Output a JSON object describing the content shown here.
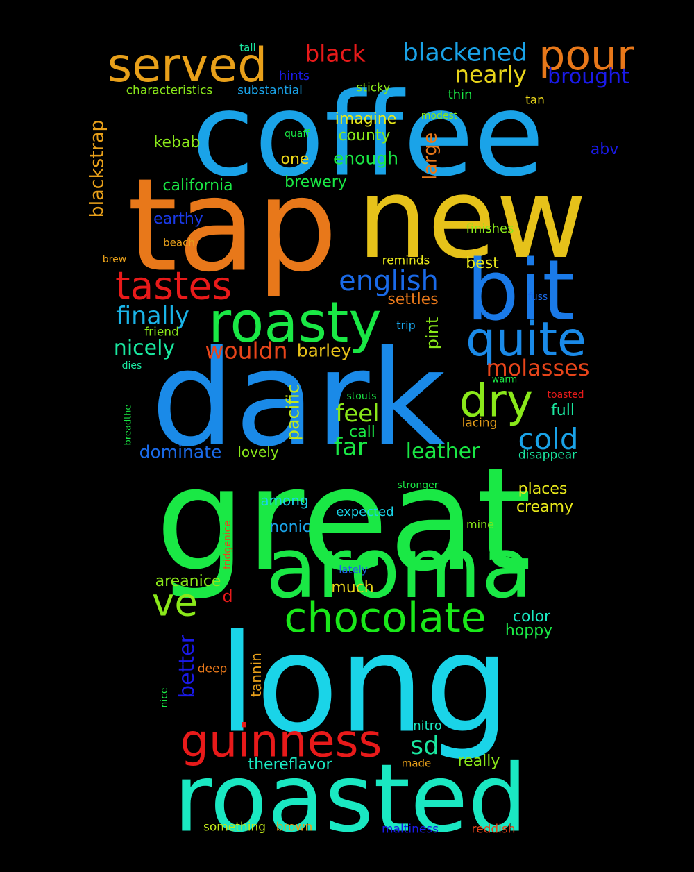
{
  "words": [
    {
      "text": "coffee",
      "color": "#1aa3e8"
    },
    {
      "text": "tap",
      "color": "#e8781a"
    },
    {
      "text": "new",
      "color": "#e6c21a"
    },
    {
      "text": "dark",
      "color": "#1a8ae8"
    },
    {
      "text": "great",
      "color": "#1ae845"
    },
    {
      "text": "long",
      "color": "#1ad4e8"
    },
    {
      "text": "aroma",
      "color": "#1ae845"
    },
    {
      "text": "roasted",
      "color": "#1ae8c2"
    },
    {
      "text": "bit",
      "color": "#1a7ae8"
    },
    {
      "text": "roasty",
      "color": "#1ae845"
    },
    {
      "text": "quite",
      "color": "#1a8ae8"
    },
    {
      "text": "served",
      "color": "#e8a01a"
    },
    {
      "text": "pour",
      "color": "#e8781a"
    },
    {
      "text": "guinness",
      "color": "#e81a1a"
    },
    {
      "text": "chocolate",
      "color": "#1ae81a"
    },
    {
      "text": "tastes",
      "color": "#e81a1a"
    },
    {
      "text": "dry",
      "color": "#8ae81a"
    },
    {
      "text": "ve",
      "color": "#8ae81a"
    },
    {
      "text": "english",
      "color": "#1a6ae8"
    },
    {
      "text": "cold",
      "color": "#1aa3e8"
    },
    {
      "text": "blackened",
      "color": "#1aa3e8"
    },
    {
      "text": "black",
      "color": "#e81a1a"
    },
    {
      "text": "nearly",
      "color": "#e8d41a"
    },
    {
      "text": "brought",
      "color": "#1a1ae8"
    },
    {
      "text": "finally",
      "color": "#1ab4e8"
    },
    {
      "text": "nicely",
      "color": "#1ae8a0"
    },
    {
      "text": "wouldn",
      "color": "#e8451a"
    },
    {
      "text": "molasses",
      "color": "#e8451a"
    },
    {
      "text": "feel",
      "color": "#8ae81a"
    },
    {
      "text": "far",
      "color": "#1ae845"
    },
    {
      "text": "sd",
      "color": "#1ae8a0"
    },
    {
      "text": "blackstrap",
      "color": "#e8a01a"
    },
    {
      "text": "large",
      "color": "#e8781a"
    },
    {
      "text": "better",
      "color": "#1a1ae8"
    },
    {
      "text": "leather",
      "color": "#1ae845"
    },
    {
      "text": "dominate",
      "color": "#1a6ae8"
    },
    {
      "text": "barley",
      "color": "#e8c21a"
    },
    {
      "text": "pint",
      "color": "#8ae81a"
    },
    {
      "text": "pacific",
      "color": "#c2e81a"
    },
    {
      "text": "county",
      "color": "#8ae81a"
    },
    {
      "text": "enough",
      "color": "#1ae845"
    },
    {
      "text": "imagine",
      "color": "#e8e81a"
    },
    {
      "text": "kebab",
      "color": "#8ae81a"
    },
    {
      "text": "california",
      "color": "#1ae845"
    },
    {
      "text": "earthy",
      "color": "#1a3ae8"
    },
    {
      "text": "one",
      "color": "#e8d41a"
    },
    {
      "text": "brewery",
      "color": "#1ae845"
    },
    {
      "text": "best",
      "color": "#e8e81a"
    },
    {
      "text": "settles",
      "color": "#e8781a"
    },
    {
      "text": "abv",
      "color": "#1a1ae8"
    },
    {
      "text": "full",
      "color": "#1ae8a0"
    },
    {
      "text": "call",
      "color": "#1ae845"
    },
    {
      "text": "lovely",
      "color": "#8ae81a"
    },
    {
      "text": "among",
      "color": "#1ad4e8"
    },
    {
      "text": "places",
      "color": "#e8e81a"
    },
    {
      "text": "creamy",
      "color": "#e8e81a"
    },
    {
      "text": "nonic",
      "color": "#1aa3e8"
    },
    {
      "text": "expected",
      "color": "#1ad4e8"
    },
    {
      "text": "areanice",
      "color": "#8ae81a"
    },
    {
      "text": "much",
      "color": "#e8d41a"
    },
    {
      "text": "color",
      "color": "#1ae8c2"
    },
    {
      "text": "hoppy",
      "color": "#1ae845"
    },
    {
      "text": "d",
      "color": "#e81a1a"
    },
    {
      "text": "thereflavor",
      "color": "#1ae8c2"
    },
    {
      "text": "really",
      "color": "#8ae81a"
    },
    {
      "text": "nitro",
      "color": "#1ae8c2"
    },
    {
      "text": "tannin",
      "color": "#e8a01a"
    },
    {
      "text": "deep",
      "color": "#e8781a"
    },
    {
      "text": "characteristics",
      "color": "#8ae81a"
    },
    {
      "text": "substantial",
      "color": "#1aa3e8"
    },
    {
      "text": "sticky",
      "color": "#8ae81a"
    },
    {
      "text": "hints",
      "color": "#1a1ae8"
    },
    {
      "text": "tall",
      "color": "#1ae8a0"
    },
    {
      "text": "thin",
      "color": "#1ae845"
    },
    {
      "text": "tan",
      "color": "#e8d41a"
    },
    {
      "text": "modest",
      "color": "#8ae81a"
    },
    {
      "text": "quaff",
      "color": "#1ae845"
    },
    {
      "text": "finishes",
      "color": "#8ae81a"
    },
    {
      "text": "beach",
      "color": "#e8a01a"
    },
    {
      "text": "brew",
      "color": "#e8a01a"
    },
    {
      "text": "reminds",
      "color": "#e8e81a"
    },
    {
      "text": "fuss",
      "color": "#1a6ae8"
    },
    {
      "text": "friend",
      "color": "#8ae81a"
    },
    {
      "text": "trip",
      "color": "#1aa3e8"
    },
    {
      "text": "dies",
      "color": "#1ae8a0"
    },
    {
      "text": "warm",
      "color": "#1ae845"
    },
    {
      "text": "toasted",
      "color": "#e81a1a"
    },
    {
      "text": "stouts",
      "color": "#1ae845"
    },
    {
      "text": "lacing",
      "color": "#e8a01a"
    },
    {
      "text": "breadthe",
      "color": "#1ae845"
    },
    {
      "text": "disappear",
      "color": "#1ae8a0"
    },
    {
      "text": "stronger",
      "color": "#1ae845"
    },
    {
      "text": "fridgenice",
      "color": "#e8451a"
    },
    {
      "text": "mine",
      "color": "#8ae81a"
    },
    {
      "text": "lately",
      "color": "#1a6ae8"
    },
    {
      "text": "nice",
      "color": "#1ae845"
    },
    {
      "text": "made",
      "color": "#e8a01a"
    },
    {
      "text": "something",
      "color": "#c2e81a"
    },
    {
      "text": "brown",
      "color": "#e8a01a"
    },
    {
      "text": "maltiness",
      "color": "#1a1ae8"
    },
    {
      "text": "reddish",
      "color": "#e8451a"
    }
  ]
}
